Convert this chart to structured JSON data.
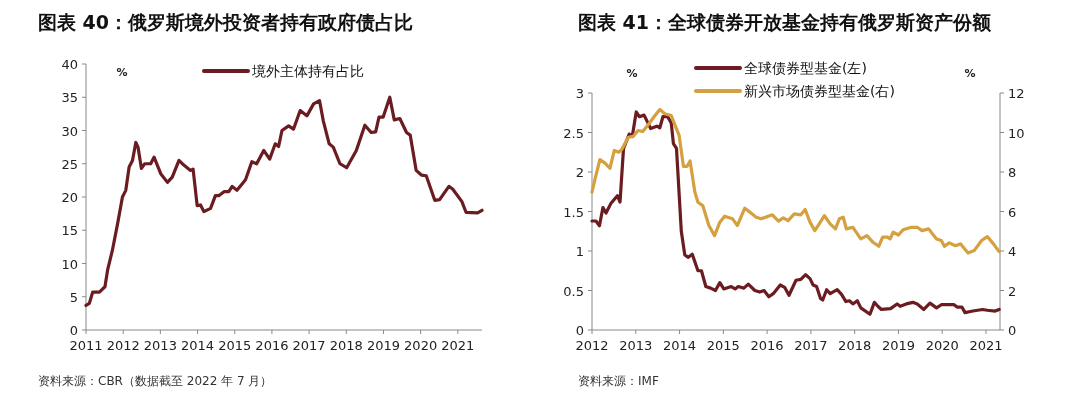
{
  "chart_data": [
    {
      "type": "line",
      "title": "图表 40：俄罗斯境外投资者持有政府债占比",
      "ylabel": "%",
      "annotations": [
        "资料来源：CBR（数据截至 2022 年 7 月）"
      ],
      "legend": "top",
      "xlim": [
        2011,
        2021.65
      ],
      "xticks": [
        2011,
        2012,
        2013,
        2014,
        2015,
        2016,
        2017,
        2018,
        2019,
        2020,
        2021
      ],
      "ylim": [
        0,
        40
      ],
      "yticks": [
        0,
        5,
        10,
        15,
        20,
        25,
        30,
        35,
        40
      ],
      "x": [
        2011.0,
        2011.09,
        2011.18,
        2011.36,
        2011.51,
        2011.58,
        2011.71,
        2011.85,
        2011.98,
        2012.07,
        2012.16,
        2012.25,
        2012.34,
        2012.4,
        2012.49,
        2012.58,
        2012.74,
        2012.83,
        2013.01,
        2013.19,
        2013.32,
        2013.5,
        2013.63,
        2013.81,
        2013.88,
        2013.99,
        2014.08,
        2014.17,
        2014.35,
        2014.48,
        2014.57,
        2014.71,
        2014.84,
        2014.93,
        2015.06,
        2015.29,
        2015.46,
        2015.59,
        2015.78,
        2015.94,
        2016.09,
        2016.18,
        2016.27,
        2016.45,
        2016.58,
        2016.76,
        2016.94,
        2017.12,
        2017.28,
        2017.38,
        2017.54,
        2017.65,
        2017.83,
        2018.01,
        2018.27,
        2018.5,
        2018.67,
        2018.79,
        2018.88,
        2018.99,
        2019.17,
        2019.29,
        2019.44,
        2019.62,
        2019.72,
        2019.88,
        2020.02,
        2020.15,
        2020.38,
        2020.51,
        2020.76,
        2020.86,
        2021.11,
        2021.22,
        2021.53,
        2021.65
      ],
      "series": [
        {
          "name": "境外主体持有占比",
          "color": "#6b1c20",
          "values": [
            3.7,
            4.0,
            5.7,
            5.7,
            6.5,
            9,
            12,
            16,
            20,
            21,
            24.5,
            25.5,
            28.2,
            27.5,
            24.3,
            25,
            25,
            26,
            23.5,
            22.2,
            23,
            25.5,
            24.8,
            24,
            24.2,
            18.7,
            18.8,
            17.8,
            18.3,
            20.2,
            20.2,
            20.8,
            20.8,
            21.6,
            21,
            22.6,
            25.3,
            25,
            27,
            25.7,
            28,
            27.6,
            30,
            30.7,
            30.2,
            33,
            32.2,
            34,
            34.5,
            31.5,
            28,
            27.5,
            25,
            24.4,
            27,
            30.8,
            29.7,
            29.8,
            32,
            32,
            35,
            31.6,
            31.8,
            29.7,
            29.3,
            24,
            23.3,
            23.2,
            19.5,
            19.6,
            21.6,
            21.2,
            19.3,
            17.7,
            17.6,
            18
          ]
        }
      ]
    },
    {
      "type": "line",
      "title": "图表 41：全球债券开放基金持有俄罗斯资产份额",
      "ylabel": "%",
      "y2label": "%",
      "annotations": [
        "资料来源：IMF"
      ],
      "legend": "top",
      "xlim": [
        2012,
        2021.32
      ],
      "xticks": [
        2012,
        2013,
        2014,
        2015,
        2016,
        2017,
        2018,
        2019,
        2020,
        2021
      ],
      "ylim": [
        0,
        3
      ],
      "yticks": [
        0,
        0.5,
        1,
        1.5,
        2,
        2.5,
        3
      ],
      "y2lim": [
        0,
        12
      ],
      "y2ticks": [
        0,
        2,
        4,
        6,
        8,
        10,
        12
      ],
      "series": [
        {
          "name": "全球债券型基金(左)",
          "color": "#6b1c20",
          "x": [
            2012.0,
            2012.09,
            2012.17,
            2012.25,
            2012.32,
            2012.43,
            2012.58,
            2012.64,
            2012.72,
            2012.85,
            2012.92,
            2013.01,
            2013.08,
            2013.19,
            2013.34,
            2013.48,
            2013.55,
            2013.62,
            2013.73,
            2013.81,
            2013.86,
            2013.93,
            2014.04,
            2014.12,
            2014.2,
            2014.29,
            2014.42,
            2014.5,
            2014.6,
            2014.71,
            2014.82,
            2014.92,
            2015.01,
            2015.18,
            2015.27,
            2015.34,
            2015.47,
            2015.57,
            2015.72,
            2015.83,
            2015.93,
            2016.04,
            2016.14,
            2016.3,
            2016.4,
            2016.5,
            2016.66,
            2016.77,
            2016.88,
            2016.98,
            2017.05,
            2017.13,
            2017.22,
            2017.27,
            2017.36,
            2017.44,
            2017.6,
            2017.7,
            2017.8,
            2017.88,
            2017.96,
            2018.06,
            2018.14,
            2018.35,
            2018.45,
            2018.53,
            2018.61,
            2018.82,
            2018.97,
            2019.04,
            2019.18,
            2019.33,
            2019.43,
            2019.58,
            2019.72,
            2019.87,
            2019.98,
            2020.27,
            2020.34,
            2020.45,
            2020.52,
            2020.7,
            2020.92,
            2021.03,
            2021.21,
            2021.3
          ],
          "values": [
            1.38,
            1.38,
            1.32,
            1.55,
            1.48,
            1.6,
            1.7,
            1.62,
            2.3,
            2.48,
            2.45,
            2.76,
            2.7,
            2.72,
            2.55,
            2.58,
            2.56,
            2.7,
            2.7,
            2.62,
            2.36,
            2.3,
            1.25,
            0.95,
            0.92,
            0.96,
            0.75,
            0.75,
            0.55,
            0.53,
            0.5,
            0.6,
            0.52,
            0.55,
            0.52,
            0.55,
            0.53,
            0.58,
            0.5,
            0.48,
            0.5,
            0.42,
            0.46,
            0.57,
            0.54,
            0.44,
            0.63,
            0.64,
            0.7,
            0.65,
            0.57,
            0.55,
            0.4,
            0.38,
            0.51,
            0.46,
            0.51,
            0.45,
            0.36,
            0.37,
            0.33,
            0.37,
            0.28,
            0.2,
            0.35,
            0.3,
            0.26,
            0.27,
            0.33,
            0.3,
            0.33,
            0.35,
            0.33,
            0.26,
            0.34,
            0.28,
            0.32,
            0.32,
            0.29,
            0.29,
            0.22,
            0.24,
            0.26,
            0.25,
            0.24,
            0.26
          ]
        },
        {
          "name": "新兴市场债券型基金(右)",
          "color": "#d4a040",
          "axis": "y2",
          "x": [
            2012.0,
            2012.07,
            2012.18,
            2012.29,
            2012.41,
            2012.51,
            2012.61,
            2012.68,
            2012.83,
            2012.94,
            2013.05,
            2013.16,
            2013.3,
            2013.44,
            2013.55,
            2013.66,
            2013.81,
            2013.9,
            2013.99,
            2014.09,
            2014.17,
            2014.24,
            2014.35,
            2014.42,
            2014.53,
            2014.67,
            2014.8,
            2014.92,
            2015.03,
            2015.21,
            2015.32,
            2015.49,
            2015.61,
            2015.75,
            2015.86,
            2016.12,
            2016.26,
            2016.37,
            2016.48,
            2016.62,
            2016.77,
            2016.87,
            2016.98,
            2017.09,
            2017.19,
            2017.31,
            2017.44,
            2017.56,
            2017.65,
            2017.74,
            2017.81,
            2017.96,
            2018.14,
            2018.28,
            2018.42,
            2018.55,
            2018.64,
            2018.75,
            2018.81,
            2018.88,
            2019.0,
            2019.11,
            2019.29,
            2019.43,
            2019.54,
            2019.69,
            2019.87,
            2019.98,
            2020.05,
            2020.16,
            2020.3,
            2020.42,
            2020.59,
            2020.73,
            2020.9,
            2021.03,
            2021.17,
            2021.3
          ],
          "values": [
            6.98,
            7.65,
            8.63,
            8.46,
            8.19,
            9.09,
            9.0,
            9.14,
            9.76,
            9.8,
            10.1,
            10.05,
            10.44,
            10.86,
            11.17,
            10.95,
            10.86,
            10.35,
            9.85,
            8.28,
            8.28,
            8.56,
            6.98,
            6.47,
            6.3,
            5.29,
            4.78,
            5.46,
            5.76,
            5.63,
            5.29,
            6.17,
            5.96,
            5.71,
            5.63,
            5.83,
            5.51,
            5.68,
            5.54,
            5.88,
            5.83,
            6.1,
            5.46,
            5.03,
            5.37,
            5.79,
            5.37,
            5.12,
            5.63,
            5.71,
            5.12,
            5.2,
            4.61,
            4.78,
            4.44,
            4.24,
            4.7,
            4.7,
            4.61,
            4.95,
            4.81,
            5.08,
            5.2,
            5.2,
            5.03,
            5.12,
            4.61,
            4.53,
            4.24,
            4.41,
            4.27,
            4.36,
            3.9,
            4.02,
            4.53,
            4.73,
            4.36,
            3.97
          ]
        }
      ]
    }
  ]
}
